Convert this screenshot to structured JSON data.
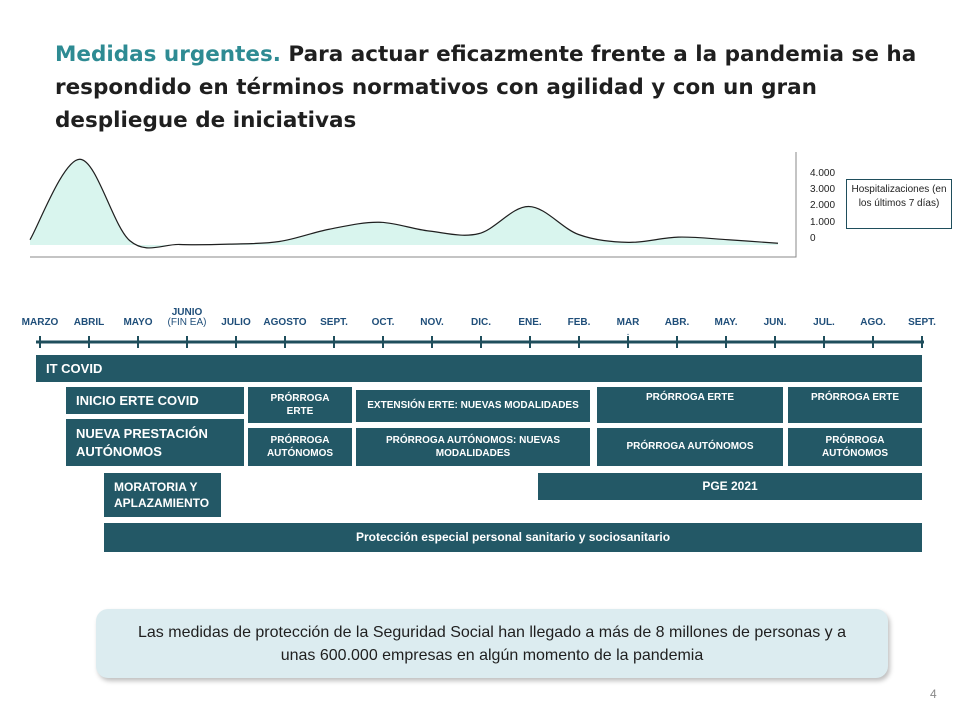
{
  "slide": {
    "title_highlight": "Medidas urgentes.",
    "title_rest": " Para actuar eficazmente frente a la pandemia se ha respondido en términos normativos con agilidad y con un gran despliegue de iniciativas",
    "page_number": "4"
  },
  "chart_data": {
    "type": "area",
    "legend": "Hospitalizaciones (en los últimos 7 días)",
    "yticks": [
      "4.000",
      "3.000",
      "2.000",
      "1.000",
      "0"
    ],
    "ylim": [
      0,
      4000
    ],
    "x": [
      "MARZO",
      "ABRIL",
      "MAYO",
      "JUNIO",
      "JULIO",
      "AGOSTO",
      "SEPT.",
      "OCT.",
      "NOV.",
      "DIC.",
      "ENE.",
      "FEB.",
      "MAR",
      "ABR.",
      "MAY.",
      "JUN."
    ],
    "values": [
      300,
      4900,
      250,
      30,
      50,
      200,
      900,
      1300,
      800,
      650,
      2200,
      600,
      150,
      450,
      300,
      100
    ],
    "fill_color": "#d9f5ee",
    "line_color": "#1f1f1f"
  },
  "timeline": {
    "months": [
      {
        "label": "MARZO"
      },
      {
        "label": "ABRIL"
      },
      {
        "label": "MAYO"
      },
      {
        "label": "JUNIO",
        "sub": "(FIN EA)"
      },
      {
        "label": "JULIO"
      },
      {
        "label": "AGOSTO"
      },
      {
        "label": "SEPT."
      },
      {
        "label": "OCT."
      },
      {
        "label": "NOV."
      },
      {
        "label": "DIC."
      },
      {
        "label": "ENE."
      },
      {
        "label": "FEB."
      },
      {
        "label": "MAR",
        "sub": "."
      },
      {
        "label": "ABR."
      },
      {
        "label": "MAY."
      },
      {
        "label": "JUN."
      },
      {
        "label": "JUL."
      },
      {
        "label": "AGO."
      },
      {
        "label": "SEPT."
      }
    ],
    "axis_color": "#1f4e5c"
  },
  "measures": {
    "it_covid": "IT COVID",
    "inicio_erte": "INICIO ERTE COVID",
    "nueva_prestacion": "NUEVA PRESTACIÓN AUTÓNOMOS",
    "moratoria": "MORATORIA Y APLAZAMIENTO",
    "prorroga_erte_1": "PRÓRROGA ERTE",
    "prorroga_autonomos_1": "PRÓRROGA AUTÓNOMOS",
    "extension_erte": "EXTENSIÓN ERTE: NUEVAS MODALIDADES",
    "prorroga_autonomos_nuevas": "PRÓRROGA AUTÓNOMOS: NUEVAS MODALIDADES",
    "prorroga_erte_2": "PRÓRROGA  ERTE",
    "prorroga_autonomos_2": "PRÓRROGA  AUTÓNOMOS",
    "prorroga_erte_3": "PRÓRROGA  ERTE",
    "prorroga_autonomos_3": "PRÓRROGA AUTÓNOMOS",
    "pge": "PGE 2021",
    "proteccion": "Protección especial personal sanitario y sociosanitario"
  },
  "note": {
    "text": "Las medidas de protección de la Seguridad Social han llegado a más de 8 millones de personas y a unas 600.000 empresas en algún momento de la pandemia"
  }
}
